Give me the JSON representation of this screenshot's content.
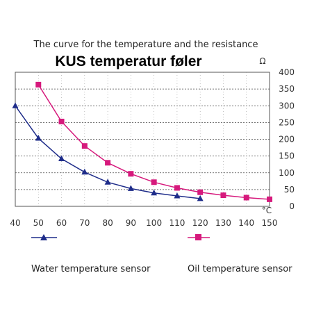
{
  "chart_data": {
    "type": "line",
    "subtitle": "The curve for the temperature and the resistance",
    "title": "KUS temperatur føler",
    "y_unit": "Ω",
    "x_unit": "°C",
    "xlim": [
      40,
      150
    ],
    "ylim": [
      0,
      400
    ],
    "x_ticks": [
      "40",
      "50",
      "60",
      "70",
      "80",
      "90",
      "100",
      "110",
      "120",
      "130",
      "140",
      "150"
    ],
    "y_ticks": [
      "0",
      "50",
      "100",
      "150",
      "200",
      "250",
      "300",
      "350",
      "400"
    ],
    "grid": true,
    "series": [
      {
        "name": "Water temperature sensor",
        "color": "#1f2d8a",
        "marker": "triangle",
        "x": [
          40,
          50,
          60,
          70,
          80,
          90,
          100,
          110,
          120
        ],
        "y": [
          300,
          203,
          142,
          102,
          72,
          53,
          40,
          31,
          23
        ]
      },
      {
        "name": "Oil temperature sensor",
        "color": "#d6197c",
        "marker": "square",
        "x": [
          50,
          60,
          70,
          80,
          90,
          100,
          110,
          120,
          130,
          140,
          150
        ],
        "y": [
          363,
          253,
          180,
          130,
          97,
          72,
          55,
          42,
          33,
          26,
          21
        ]
      }
    ]
  }
}
